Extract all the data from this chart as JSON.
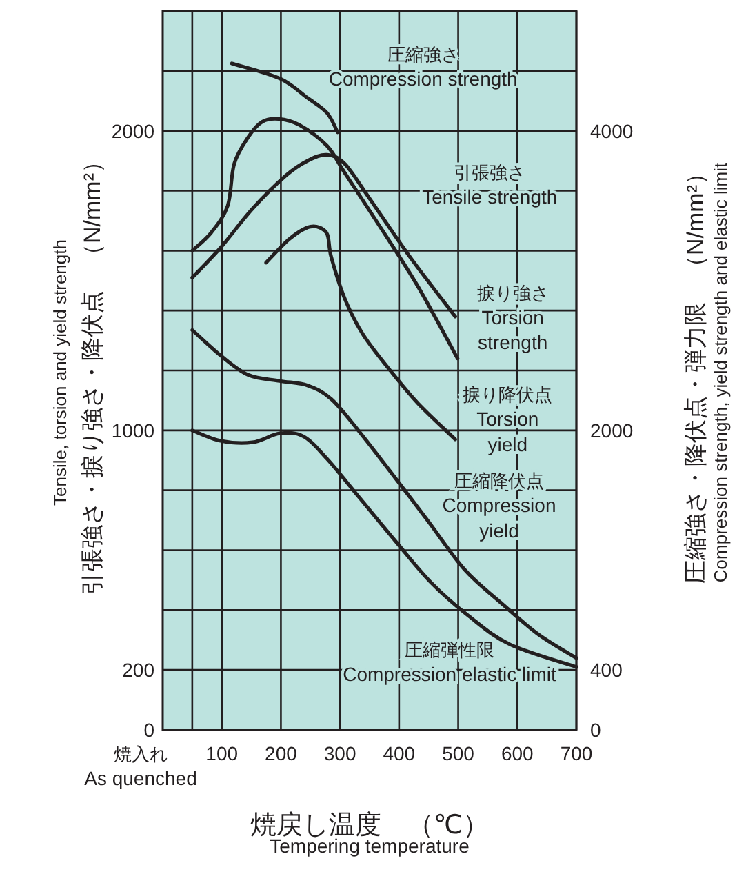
{
  "chart_data": {
    "type": "line",
    "xlabel": "焼戻し温度　（℃）\nTempering temperature",
    "ylabel": "Tensile, torsion and yield strength\n引張強さ・捩り強さ・降伏点　（N/mm²）",
    "y2label": "圧縮強さ・降伏点・弾力限　（N/mm²）\nCompression strength, yield strength and elastic limit",
    "xlim": [
      0,
      700
    ],
    "xticks": [
      {
        "value": 50,
        "label": null
      },
      100,
      200,
      300,
      400,
      500,
      600,
      700
    ],
    "ylim": [
      0,
      2400
    ],
    "yticks": [
      0,
      200,
      {
        "value": 400,
        "label": null
      },
      {
        "value": 600,
        "label": null
      },
      {
        "value": 800,
        "label": null
      },
      1000,
      {
        "value": 1200,
        "label": null
      },
      {
        "value": 1400,
        "label": null
      },
      {
        "value": 1600,
        "label": null
      },
      {
        "value": 1800,
        "label": null
      },
      2000,
      {
        "value": 2200,
        "label": null
      }
    ],
    "y2lim": [
      0,
      4800
    ],
    "y2ticks": [
      0,
      400,
      2000,
      4000
    ],
    "grid": true,
    "marker": "none",
    "line_style": "solid",
    "series": [
      {
        "name": "圧縮強さ\nCompression strength",
        "color": "#231f20",
        "axis": "y2",
        "x": [
          117,
          198,
          245,
          278,
          296
        ],
        "values": [
          4450,
          4350,
          4220,
          4120,
          3990
        ]
      },
      {
        "name": "捩り強さ\nTorsion\nstrength",
        "color": "#231f20",
        "x": [
          50,
          82,
          110,
          121,
          145,
          168,
          196,
          231,
          278,
          308,
          371,
          432,
          499
        ],
        "values": [
          1600,
          1660,
          1750,
          1890,
          1980,
          2030,
          2040,
          2020,
          1950,
          1860,
          1670,
          1480,
          1240
        ]
      },
      {
        "name": "引張強さ\nTensile strength",
        "color": "#231f20",
        "x": [
          50,
          98,
          152,
          208,
          245,
          278,
          308,
          348,
          418,
          495
        ],
        "values": [
          1510,
          1610,
          1740,
          1850,
          1900,
          1920,
          1890,
          1780,
          1580,
          1380
        ]
      },
      {
        "name": "捩り降伏点\nTorsion\nyield",
        "color": "#231f20",
        "x": [
          175,
          215,
          250,
          277,
          285,
          308,
          339,
          385,
          432,
          495
        ],
        "values": [
          1560,
          1640,
          1680,
          1660,
          1580,
          1440,
          1320,
          1200,
          1090,
          970
        ]
      },
      {
        "name": "圧縮降伏点\nCompression\nyield",
        "color": "#231f20",
        "axis": "y2",
        "x": [
          50,
          98,
          145,
          198,
          245,
          285,
          331,
          394,
          448,
          511,
          572,
          635,
          700
        ],
        "values": [
          2670,
          2500,
          2370,
          2330,
          2300,
          2210,
          2000,
          1680,
          1400,
          1070,
          850,
          640,
          480
        ]
      },
      {
        "name": "圧縮弾性限\nCompression elastic limit",
        "color": "#231f20",
        "axis": "y2",
        "x": [
          50,
          98,
          152,
          198,
          238,
          278,
          331,
          394,
          455,
          518,
          588,
          700
        ],
        "values": [
          2000,
          1930,
          1920,
          1980,
          1960,
          1810,
          1560,
          1260,
          980,
          760,
          570,
          420
        ]
      }
    ],
    "annotations": [
      "焼入れ\nAs quenched"
    ]
  }
}
